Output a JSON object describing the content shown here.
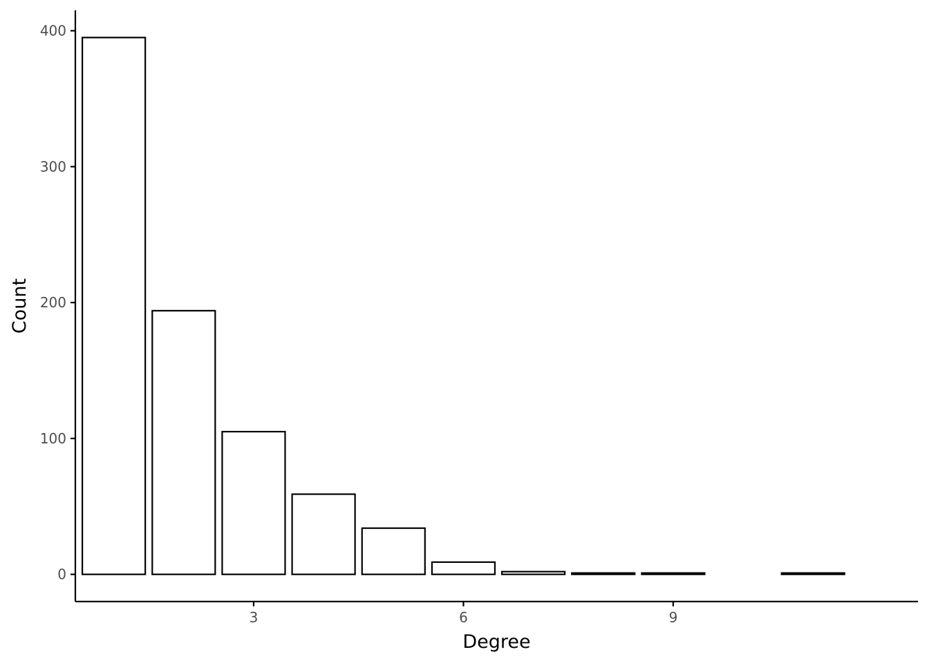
{
  "chart_data": {
    "type": "bar",
    "title": "",
    "xlabel": "Degree",
    "ylabel": "Count",
    "x": [
      1,
      2,
      3,
      4,
      5,
      6,
      7,
      8,
      9,
      11
    ],
    "values": [
      395,
      194,
      105,
      59,
      34,
      9,
      2,
      1,
      1,
      1
    ],
    "xlim": [
      0.45,
      12.5
    ],
    "ylim": [
      -20,
      415
    ],
    "x_ticks": [
      3,
      6,
      9
    ],
    "x_tick_labels": [
      "3",
      "6",
      "9"
    ],
    "y_ticks": [
      0,
      100,
      200,
      300,
      400
    ],
    "y_tick_labels": [
      "0",
      "100",
      "200",
      "300",
      "400"
    ],
    "bar_fill": "#ffffff",
    "bar_stroke": "#000000",
    "grid": false,
    "legend": "none"
  }
}
